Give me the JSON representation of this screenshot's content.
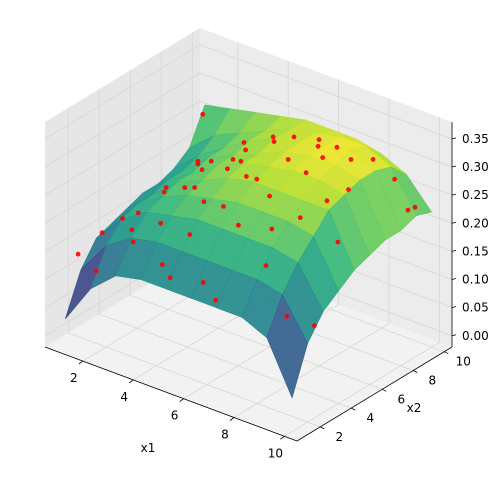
{
  "chart_data": {
    "type": "surface3d",
    "title": "",
    "xlabel": "x1",
    "ylabel": "x2",
    "zlabel": "",
    "xlim": [
      0.5,
      10.5
    ],
    "ylim": [
      0.5,
      10.5
    ],
    "zlim": [
      -0.02,
      0.38
    ],
    "x_ticks": [
      2,
      4,
      6,
      8,
      10
    ],
    "y_ticks": [
      2,
      4,
      6,
      8,
      10
    ],
    "z_ticks": [
      0.0,
      0.05,
      0.1,
      0.15,
      0.2,
      0.25,
      0.3,
      0.35
    ],
    "x_tick_labels": [
      "2",
      "4",
      "6",
      "8",
      "10"
    ],
    "y_tick_labels": [
      "2",
      "4",
      "6",
      "8",
      "10"
    ],
    "z_tick_labels": [
      "0.00",
      "0.05",
      "0.10",
      "0.15",
      "0.20",
      "0.25",
      "0.30",
      "0.35"
    ],
    "grid": true,
    "surface": {
      "colormap": "viridis",
      "x": [
        1,
        2,
        3,
        4,
        5,
        6,
        7,
        8,
        9,
        10
      ],
      "y": [
        1,
        2,
        3,
        4,
        5,
        6,
        7,
        8,
        9,
        10
      ],
      "z": [
        [
          0.03,
          0.1,
          0.14,
          0.15,
          0.16,
          0.17,
          0.17,
          0.18,
          0.2,
          0.26
        ],
        [
          0.1,
          0.16,
          0.19,
          0.2,
          0.2,
          0.21,
          0.21,
          0.22,
          0.24,
          0.27
        ],
        [
          0.14,
          0.19,
          0.22,
          0.23,
          0.24,
          0.24,
          0.25,
          0.25,
          0.26,
          0.28
        ],
        [
          0.15,
          0.2,
          0.23,
          0.25,
          0.26,
          0.27,
          0.27,
          0.28,
          0.28,
          0.29
        ],
        [
          0.15,
          0.2,
          0.24,
          0.26,
          0.28,
          0.29,
          0.29,
          0.3,
          0.3,
          0.3
        ],
        [
          0.15,
          0.2,
          0.24,
          0.27,
          0.29,
          0.3,
          0.31,
          0.31,
          0.31,
          0.3
        ],
        [
          0.15,
          0.2,
          0.24,
          0.27,
          0.29,
          0.31,
          0.32,
          0.32,
          0.32,
          0.3
        ],
        [
          0.15,
          0.2,
          0.24,
          0.27,
          0.29,
          0.31,
          0.32,
          0.33,
          0.32,
          0.29
        ],
        [
          0.13,
          0.19,
          0.23,
          0.26,
          0.29,
          0.3,
          0.31,
          0.31,
          0.3,
          0.27
        ],
        [
          0.04,
          0.12,
          0.16,
          0.18,
          0.2,
          0.21,
          0.22,
          0.22,
          0.23,
          0.22
        ]
      ]
    },
    "scatter": {
      "color": "#ff0000",
      "points": [
        [
          1.2,
          1.5,
          0.14
        ],
        [
          1.6,
          2.4,
          0.17
        ],
        [
          2.1,
          1.2,
          0.13
        ],
        [
          2.6,
          3.1,
          0.21
        ],
        [
          1.3,
          4.2,
          0.16
        ],
        [
          3.2,
          1.8,
          0.19
        ],
        [
          3.8,
          2.6,
          0.22
        ],
        [
          2.4,
          5.1,
          0.21
        ],
        [
          4.1,
          4.3,
          0.26
        ],
        [
          4.6,
          1.4,
          0.18
        ],
        [
          5.2,
          2.2,
          0.23
        ],
        [
          5.8,
          3.4,
          0.27
        ],
        [
          3.1,
          6.4,
          0.24
        ],
        [
          4.4,
          6.8,
          0.27
        ],
        [
          5.6,
          5.2,
          0.29
        ],
        [
          6.1,
          1.6,
          0.17
        ],
        [
          6.7,
          2.9,
          0.26
        ],
        [
          7.2,
          4.1,
          0.3
        ],
        [
          2.2,
          7.6,
          0.22
        ],
        [
          3.6,
          8.4,
          0.25
        ],
        [
          5.1,
          7.8,
          0.3
        ],
        [
          6.4,
          6.6,
          0.31
        ],
        [
          7.6,
          5.8,
          0.32
        ],
        [
          8.1,
          2.4,
          0.22
        ],
        [
          8.6,
          3.8,
          0.29
        ],
        [
          1.4,
          8.9,
          0.18
        ],
        [
          2.8,
          9.6,
          0.23
        ],
        [
          4.2,
          9.2,
          0.27
        ],
        [
          5.9,
          9.4,
          0.29
        ],
        [
          7.1,
          8.6,
          0.31
        ],
        [
          8.4,
          7.4,
          0.33
        ],
        [
          9.1,
          6.1,
          0.31
        ],
        [
          9.3,
          1.8,
          0.16
        ],
        [
          9.6,
          4.6,
          0.25
        ],
        [
          9.8,
          8.8,
          0.24
        ],
        [
          6.9,
          1.1,
          0.16
        ],
        [
          7.8,
          9.8,
          0.28
        ],
        [
          8.9,
          9.4,
          0.27
        ],
        [
          3.4,
          4.8,
          0.24
        ],
        [
          4.9,
          3.6,
          0.26
        ],
        [
          6.2,
          4.9,
          0.3
        ],
        [
          7.4,
          7.2,
          0.32
        ],
        [
          5.4,
          8.6,
          0.3
        ],
        [
          2.9,
          2.2,
          0.2
        ],
        [
          1.8,
          6.2,
          0.19
        ],
        [
          8.8,
          5.2,
          0.3
        ],
        [
          9.9,
          2.6,
          0.14
        ],
        [
          4.6,
          5.6,
          0.28
        ],
        [
          6.6,
          8.2,
          0.31
        ],
        [
          3.9,
          7.1,
          0.26
        ],
        [
          7.9,
          3.1,
          0.27
        ],
        [
          1.1,
          9.7,
          0.25
        ],
        [
          9.4,
          9.9,
          0.22
        ],
        [
          5.1,
          1.1,
          0.17
        ],
        [
          2.3,
          8.3,
          0.21
        ]
      ]
    }
  }
}
